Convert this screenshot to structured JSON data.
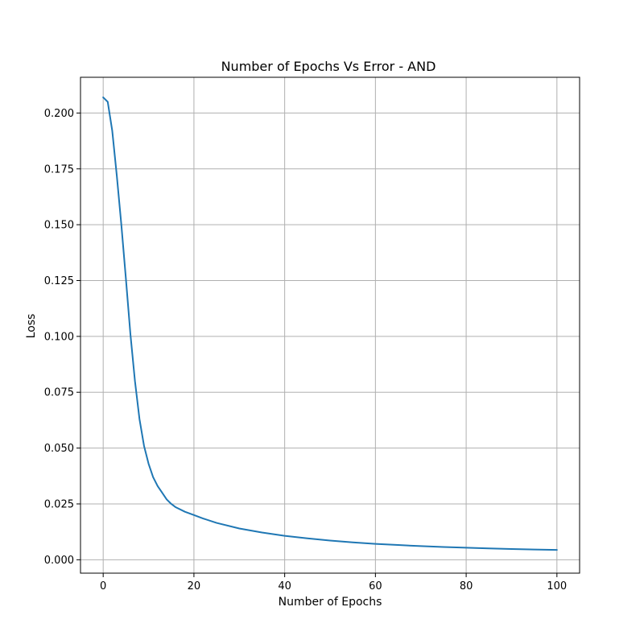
{
  "chart_data": {
    "type": "line",
    "title": "Number of Epochs Vs Error - AND",
    "xlabel": "Number of Epochs",
    "ylabel": "Loss",
    "xlim": [
      -5,
      105
    ],
    "ylim": [
      -0.006,
      0.216
    ],
    "xticks": [
      0,
      20,
      40,
      60,
      80,
      100
    ],
    "xtick_labels": [
      "0",
      "20",
      "40",
      "60",
      "80",
      "100"
    ],
    "yticks": [
      0.0,
      0.025,
      0.05,
      0.075,
      0.1,
      0.125,
      0.15,
      0.175,
      0.2
    ],
    "ytick_labels": [
      "0.000",
      "0.025",
      "0.050",
      "0.075",
      "0.100",
      "0.125",
      "0.150",
      "0.175",
      "0.200"
    ],
    "grid": true,
    "series": [
      {
        "color": "#1f77b4",
        "x": [
          0,
          1,
          2,
          3,
          4,
          5,
          6,
          7,
          8,
          9,
          10,
          11,
          12,
          13,
          14,
          15,
          16,
          18,
          20,
          22,
          25,
          30,
          35,
          40,
          45,
          50,
          55,
          60,
          65,
          70,
          75,
          80,
          85,
          90,
          95,
          100
        ],
        "y": [
          0.207,
          0.205,
          0.192,
          0.172,
          0.15,
          0.126,
          0.101,
          0.08,
          0.063,
          0.051,
          0.043,
          0.037,
          0.033,
          0.03,
          0.027,
          0.025,
          0.0235,
          0.0215,
          0.02,
          0.0185,
          0.0165,
          0.014,
          0.0122,
          0.0107,
          0.0096,
          0.0086,
          0.0078,
          0.0071,
          0.0066,
          0.0061,
          0.0057,
          0.0054,
          0.0051,
          0.0048,
          0.0046,
          0.0044
        ]
      }
    ]
  }
}
